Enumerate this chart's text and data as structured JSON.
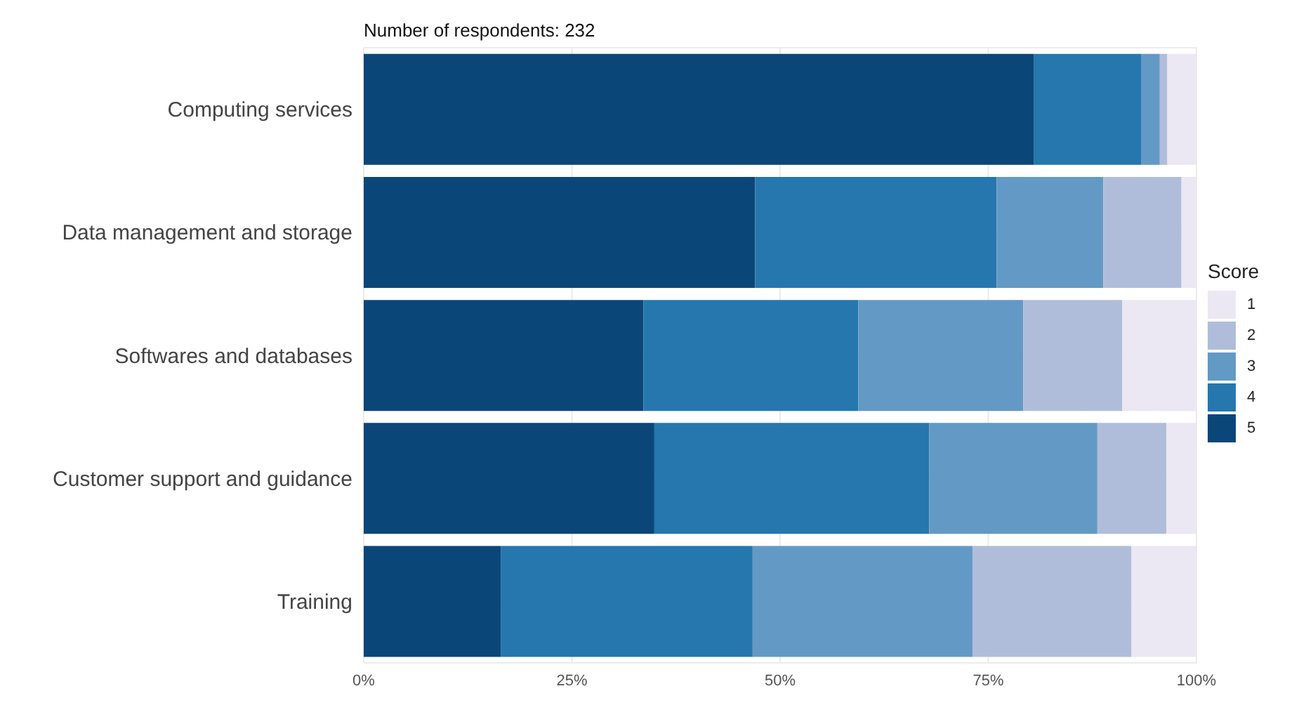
{
  "chart_data": {
    "type": "bar",
    "orientation": "horizontal",
    "stacked": true,
    "title": "Number of respondents: 232",
    "legend_title": "Score",
    "legend": "right",
    "categories": [
      "Computing services",
      "Data management and storage",
      "Softwares and databases",
      "Customer support and guidance",
      "Training"
    ],
    "series": [
      {
        "name": "5",
        "color": "#0b4679",
        "values": [
          80.5,
          47.0,
          33.6,
          34.9,
          16.5
        ]
      },
      {
        "name": "4",
        "color": "#2577ae",
        "values": [
          12.9,
          29.0,
          25.8,
          33.0,
          30.2
        ]
      },
      {
        "name": "3",
        "color": "#6399c5",
        "values": [
          2.2,
          12.8,
          19.8,
          20.2,
          26.4
        ]
      },
      {
        "name": "2",
        "color": "#b0bdda",
        "values": [
          0.9,
          9.4,
          11.9,
          8.3,
          19.1
        ]
      },
      {
        "name": "1",
        "color": "#ebe7f3",
        "values": [
          3.5,
          1.8,
          8.9,
          3.6,
          7.8
        ]
      }
    ],
    "xlim": [
      0,
      100
    ],
    "xticks": [
      {
        "value": 0,
        "label": "0%"
      },
      {
        "value": 25,
        "label": "25%"
      },
      {
        "value": 50,
        "label": "50%"
      },
      {
        "value": 75,
        "label": "75%"
      },
      {
        "value": 100,
        "label": "100%"
      }
    ],
    "grid": true
  }
}
